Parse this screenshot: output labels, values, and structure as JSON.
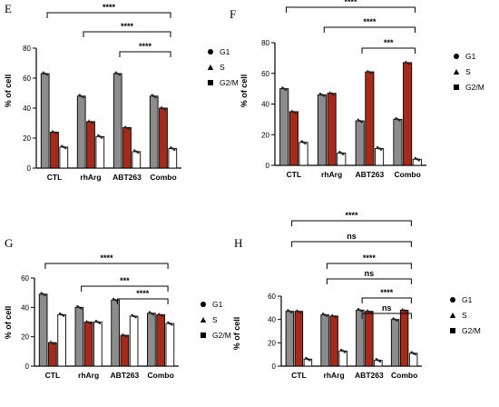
{
  "colors": {
    "G1": "#8c8c8c",
    "S": "#a52a1a",
    "G2M": "#ffffff",
    "outline": "#000000"
  },
  "chart_data": [
    {
      "panel": "E",
      "type": "bar",
      "ylabel": "% of cell",
      "ylim": [
        0,
        80
      ],
      "yticks": [
        "0",
        "20",
        "40",
        "60",
        "80"
      ],
      "categories": [
        "CTL",
        "rhArg",
        "ABT263",
        "Combo"
      ],
      "series": [
        {
          "name": "G1",
          "values": [
            63,
            48,
            63,
            48
          ]
        },
        {
          "name": "S",
          "values": [
            24,
            31,
            27,
            40
          ]
        },
        {
          "name": "G2/M",
          "values": [
            14,
            21,
            11,
            13
          ]
        }
      ],
      "legend": [
        "G1",
        "S",
        "G2/M"
      ],
      "significance": [
        {
          "from": 0,
          "to": 3,
          "label": "****"
        },
        {
          "from": 1,
          "to": 3,
          "label": "****"
        },
        {
          "from": 2,
          "to": 3,
          "label": "****"
        }
      ]
    },
    {
      "panel": "F",
      "type": "bar",
      "ylabel": "% of cell",
      "ylim": [
        0,
        80
      ],
      "yticks": [
        "0",
        "20",
        "40",
        "60",
        "80"
      ],
      "categories": [
        "CTL",
        "rhArg",
        "ABT263",
        "Combo"
      ],
      "series": [
        {
          "name": "G1",
          "values": [
            50,
            46,
            29,
            30
          ]
        },
        {
          "name": "S",
          "values": [
            35,
            47,
            61,
            67
          ]
        },
        {
          "name": "G2/M",
          "values": [
            15,
            8,
            11,
            4
          ]
        }
      ],
      "legend": [
        "G1",
        "S",
        "G2/M"
      ],
      "significance": [
        {
          "from": 0,
          "to": 3,
          "label": "****"
        },
        {
          "from": 1,
          "to": 3,
          "label": "****"
        },
        {
          "from": 2,
          "to": 3,
          "label": "***"
        }
      ]
    },
    {
      "panel": "G",
      "type": "bar",
      "ylabel": "% of cell",
      "ylim": [
        0,
        60
      ],
      "yticks": [
        "0",
        "20",
        "40",
        "60"
      ],
      "categories": [
        "CTL",
        "rhArg",
        "ABT263",
        "Combo"
      ],
      "series": [
        {
          "name": "G1",
          "values": [
            49,
            40,
            45,
            36
          ]
        },
        {
          "name": "S",
          "values": [
            16,
            30,
            21,
            35
          ]
        },
        {
          "name": "G2/M",
          "values": [
            35,
            30,
            34,
            29
          ]
        }
      ],
      "legend": [
        "G1",
        "S",
        "G2/M"
      ],
      "significance": [
        {
          "from": 0,
          "to": 3,
          "label": "****"
        },
        {
          "from": 1,
          "to": 3,
          "label": "***"
        },
        {
          "from": 2,
          "to": 3,
          "label": "****"
        }
      ]
    },
    {
      "panel": "H",
      "type": "bar",
      "ylabel": "% of cell",
      "ylim": [
        0,
        60
      ],
      "yticks": [
        "0",
        "20",
        "40",
        "60"
      ],
      "categories": [
        "CTL",
        "rhArg",
        "ABT263",
        "Combo"
      ],
      "series": [
        {
          "name": "G1",
          "values": [
            47,
            44,
            48,
            40
          ]
        },
        {
          "name": "S",
          "values": [
            47,
            43,
            47,
            48
          ]
        },
        {
          "name": "G2/M",
          "values": [
            6,
            13,
            5,
            11
          ]
        }
      ],
      "legend": [
        "G1",
        "S",
        "G2/M"
      ],
      "significance": [
        {
          "from": 0,
          "to": 3,
          "label": "****"
        },
        {
          "from": 0,
          "to": 3,
          "label": "ns"
        },
        {
          "from": 1,
          "to": 3,
          "label": "****"
        },
        {
          "from": 1,
          "to": 3,
          "label": "ns"
        },
        {
          "from": 2,
          "to": 3,
          "label": "****"
        },
        {
          "from": 2,
          "to": 3,
          "label": "ns"
        }
      ]
    }
  ]
}
